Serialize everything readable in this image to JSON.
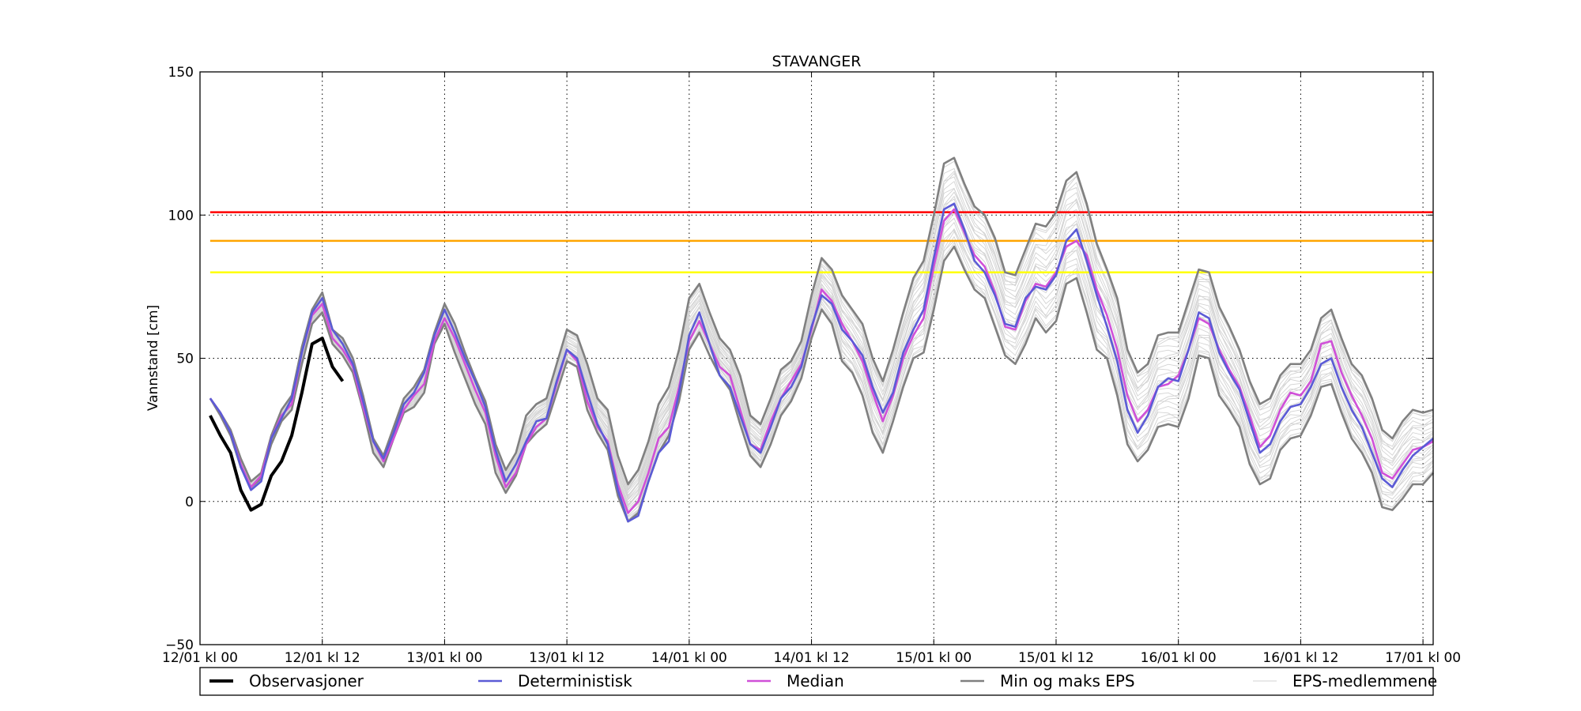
{
  "chart_data": {
    "type": "line",
    "title": "STAVANGER",
    "ylabel": "Vannstand [cm]",
    "xlabel": "",
    "x_unit": "hours from 12/01 kl 00",
    "xlim": [
      0,
      121
    ],
    "ylim": [
      -50,
      150
    ],
    "xticks": [
      0,
      12,
      24,
      36,
      48,
      60,
      72,
      84,
      96,
      108,
      120
    ],
    "xtick_labels": [
      "12/01 kl 00",
      "12/01 kl 12",
      "13/01 kl 00",
      "13/01 kl 12",
      "14/01 kl 00",
      "14/01 kl 12",
      "15/01 kl 00",
      "15/01 kl 12",
      "16/01 kl 00",
      "16/01 kl 12",
      "17/01 kl 00"
    ],
    "yticks": [
      -50,
      0,
      50,
      100,
      150
    ],
    "ytick_labels": [
      "−50",
      "0",
      "50",
      "100",
      "150"
    ],
    "grid": true,
    "legend_position": "below",
    "thresholds": [
      {
        "value": 101,
        "color": "#ff0000"
      },
      {
        "value": 91,
        "color": "#ffa500"
      },
      {
        "value": 80,
        "color": "#ffff00"
      }
    ],
    "observations": {
      "name": "Observasjoner",
      "color": "#000000",
      "x": [
        1,
        2,
        3,
        4,
        5,
        6,
        7,
        8,
        9,
        10,
        11,
        12,
        13,
        14
      ],
      "values": [
        30,
        23,
        17,
        4,
        -3,
        -1,
        9,
        14,
        23,
        38,
        55,
        57,
        47,
        42
      ]
    },
    "deterministic": {
      "name": "Deterministisk",
      "color": "#5b5bd6",
      "values": [
        36,
        31,
        24,
        12,
        4,
        7,
        22,
        29,
        36,
        52,
        66,
        71,
        60,
        55,
        48,
        35,
        21,
        15,
        24,
        34,
        38,
        45,
        58,
        67,
        59,
        50,
        42,
        33,
        18,
        7,
        13,
        21,
        28,
        29,
        42,
        53,
        50,
        38,
        27,
        20,
        4,
        -7,
        -5,
        7,
        17,
        21,
        38,
        58,
        66,
        55,
        44,
        40,
        30,
        20,
        17,
        26,
        36,
        40,
        47,
        61,
        72,
        69,
        60,
        56,
        51,
        40,
        31,
        38,
        52,
        60,
        67,
        85,
        102,
        104,
        95,
        84,
        80,
        72,
        62,
        61,
        71,
        75,
        74,
        79,
        91,
        95,
        84,
        72,
        61,
        49,
        32,
        24,
        30,
        40,
        43,
        42,
        53,
        66,
        64,
        52,
        45,
        39,
        28,
        17,
        20,
        28,
        33,
        34,
        40,
        48,
        50,
        40,
        32,
        26,
        17,
        8,
        5,
        11,
        16,
        19,
        22
      ]
    },
    "median": {
      "name": "Median",
      "color": "#d050d8",
      "values": [
        36,
        31,
        24,
        13,
        5,
        9,
        22,
        30,
        34,
        52,
        65,
        69,
        57,
        53,
        47,
        33,
        21,
        14,
        22,
        32,
        37,
        41,
        56,
        64,
        57,
        48,
        39,
        31,
        16,
        5,
        10,
        20,
        26,
        29,
        41,
        53,
        49,
        35,
        26,
        21,
        6,
        -4,
        0,
        10,
        22,
        26,
        40,
        56,
        63,
        55,
        47,
        44,
        32,
        20,
        18,
        28,
        36,
        42,
        48,
        60,
        74,
        70,
        62,
        56,
        49,
        38,
        28,
        37,
        50,
        58,
        64,
        82,
        98,
        102,
        94,
        86,
        82,
        73,
        61,
        60,
        70,
        76,
        75,
        80,
        89,
        91,
        86,
        74,
        65,
        53,
        37,
        28,
        32,
        40,
        41,
        44,
        53,
        64,
        62,
        53,
        46,
        40,
        30,
        19,
        23,
        32,
        38,
        37,
        42,
        55,
        56,
        45,
        37,
        30,
        22,
        10,
        8,
        13,
        18,
        19,
        21
      ]
    },
    "eps_min": {
      "name": "Min og maks EPS",
      "color": "#808080",
      "values": [
        36,
        30,
        23,
        12,
        5,
        8,
        20,
        28,
        32,
        48,
        62,
        66,
        55,
        51,
        45,
        32,
        17,
        12,
        22,
        31,
        33,
        38,
        55,
        62,
        52,
        43,
        34,
        27,
        10,
        3,
        9,
        20,
        24,
        27,
        38,
        49,
        47,
        32,
        24,
        18,
        2,
        -7,
        -4,
        7,
        17,
        23,
        35,
        53,
        59,
        51,
        44,
        39,
        27,
        16,
        12,
        20,
        30,
        35,
        43,
        57,
        67,
        62,
        49,
        45,
        37,
        24,
        17,
        28,
        40,
        50,
        52,
        67,
        84,
        89,
        81,
        74,
        71,
        61,
        51,
        48,
        55,
        64,
        59,
        63,
        76,
        78,
        66,
        53,
        50,
        37,
        20,
        14,
        18,
        26,
        27,
        26,
        36,
        51,
        50,
        37,
        32,
        26,
        13,
        6,
        8,
        18,
        22,
        23,
        30,
        40,
        41,
        31,
        22,
        17,
        10,
        -2,
        -3,
        1,
        6,
        6,
        10
      ]
    },
    "eps_max": {
      "name": "Min og maks EPS",
      "color": "#808080",
      "values": [
        36,
        31,
        25,
        15,
        7,
        10,
        23,
        32,
        37,
        54,
        67,
        73,
        60,
        57,
        50,
        37,
        22,
        16,
        26,
        36,
        40,
        46,
        59,
        69,
        62,
        52,
        43,
        35,
        20,
        11,
        17,
        30,
        34,
        36,
        48,
        60,
        58,
        48,
        36,
        32,
        16,
        6,
        11,
        21,
        34,
        40,
        53,
        71,
        76,
        66,
        57,
        53,
        44,
        30,
        27,
        36,
        46,
        49,
        56,
        72,
        85,
        81,
        72,
        67,
        62,
        50,
        42,
        53,
        66,
        78,
        84,
        100,
        118,
        120,
        111,
        103,
        100,
        92,
        80,
        79,
        88,
        97,
        96,
        101,
        112,
        115,
        104,
        90,
        81,
        71,
        53,
        45,
        48,
        58,
        59,
        59,
        70,
        81,
        80,
        68,
        61,
        53,
        42,
        34,
        36,
        44,
        48,
        48,
        53,
        64,
        67,
        57,
        48,
        44,
        36,
        25,
        22,
        28,
        32,
        31,
        32
      ]
    },
    "eps_members": {
      "name": "EPS-medlemmene",
      "color": "#d3d3d3",
      "count": 24
    },
    "legend": [
      "Observasjoner",
      "Deterministisk",
      "Median",
      "Min og maks EPS",
      "EPS-medlemmene"
    ]
  }
}
